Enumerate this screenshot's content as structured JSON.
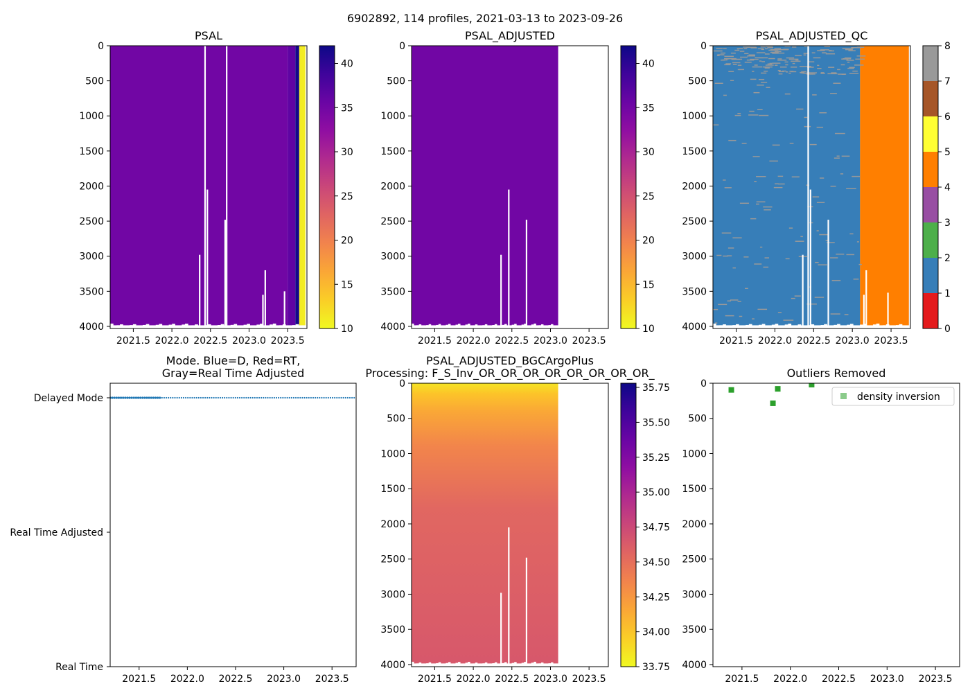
{
  "suptitle": "6902892, 114 profiles, 2021-03-13 to 2023-09-26",
  "chart_data": [
    {
      "id": "psal",
      "type": "heatmap",
      "title": "PSAL",
      "xlim": [
        2021.2,
        2023.75
      ],
      "ylim": [
        4030,
        0
      ],
      "xticks": [
        "2021.5",
        "2022.0",
        "2022.5",
        "2023.0",
        "2023.5"
      ],
      "yticks": [
        "0",
        "500",
        "1000",
        "1500",
        "2000",
        "2500",
        "3000",
        "3500",
        "4000"
      ],
      "colorbar": {
        "min": 10,
        "max": 42,
        "ticks": [
          "10",
          "15",
          "20",
          "25",
          "30",
          "35",
          "40"
        ],
        "colormap": "plasma_r"
      },
      "data_end": 2023.73,
      "value_bands": [
        {
          "x0": 2021.2,
          "x1": 2023.5,
          "value": 35
        },
        {
          "x0": 2023.5,
          "x1": 2023.6,
          "value": 36.5
        },
        {
          "x0": 2023.6,
          "x1": 2023.65,
          "value": 41.5
        },
        {
          "x0": 2023.65,
          "x1": 2023.73,
          "value": 11
        }
      ],
      "gaps": [
        {
          "x": 2022.35,
          "depth": 2980
        },
        {
          "x": 2022.42,
          "depth": 0
        },
        {
          "x": 2022.45,
          "depth": 2050
        },
        {
          "x": 2022.68,
          "depth": 2480
        },
        {
          "x": 2022.7,
          "depth": 0
        },
        {
          "x": 2023.17,
          "depth": 3550
        },
        {
          "x": 2023.2,
          "depth": 3200
        },
        {
          "x": 2023.45,
          "depth": 3500
        }
      ]
    },
    {
      "id": "psal_adjusted",
      "type": "heatmap",
      "title": "PSAL_ADJUSTED",
      "xlim": [
        2021.2,
        2023.75
      ],
      "ylim": [
        4030,
        0
      ],
      "xticks": [
        "2021.5",
        "2022.0",
        "2022.5",
        "2023.0",
        "2023.5"
      ],
      "yticks": [
        "0",
        "500",
        "1000",
        "1500",
        "2000",
        "2500",
        "3000",
        "3500",
        "4000"
      ],
      "colorbar": {
        "min": 10,
        "max": 42,
        "ticks": [
          "10",
          "15",
          "20",
          "25",
          "30",
          "35",
          "40"
        ],
        "colormap": "plasma_r"
      },
      "data_end": 2023.1,
      "value_bands": [
        {
          "x0": 2021.2,
          "x1": 2023.1,
          "value": 35
        }
      ],
      "gaps": [
        {
          "x": 2022.35,
          "depth": 2980
        },
        {
          "x": 2022.45,
          "depth": 2050
        },
        {
          "x": 2022.68,
          "depth": 2480
        }
      ]
    },
    {
      "id": "psal_adjusted_qc",
      "type": "heatmap",
      "title": "PSAL_ADJUSTED_QC",
      "xlim": [
        2021.2,
        2023.75
      ],
      "ylim": [
        4030,
        0
      ],
      "xticks": [
        "2021.5",
        "2022.0",
        "2022.5",
        "2023.0",
        "2023.5"
      ],
      "yticks": [
        "0",
        "500",
        "1000",
        "1500",
        "2000",
        "2500",
        "3000",
        "3500",
        "4000"
      ],
      "colorbar": {
        "min": 0,
        "max": 8,
        "ticks": [
          "0",
          "1",
          "2",
          "3",
          "4",
          "5",
          "6",
          "7",
          "8"
        ],
        "categories": [
          "#e41a1c",
          "#377eb8",
          "#4daf4a",
          "#984ea3",
          "#ff7f00",
          "#ffff33",
          "#a65628",
          "#f781bf",
          "#999999"
        ]
      },
      "data_end": 2023.73,
      "qc_bands": [
        {
          "x0": 2021.2,
          "x1": 2023.1,
          "flag": 1
        },
        {
          "x0": 2023.1,
          "x1": 2023.73,
          "flag": 4
        }
      ],
      "gaps": [
        {
          "x": 2022.35,
          "depth": 2980
        },
        {
          "x": 2022.42,
          "depth": 0
        },
        {
          "x": 2022.45,
          "depth": 2050
        },
        {
          "x": 2022.68,
          "depth": 2480
        },
        {
          "x": 2023.14,
          "depth": 3550
        },
        {
          "x": 2023.17,
          "depth": 3200
        },
        {
          "x": 2023.45,
          "depth": 3520
        }
      ]
    },
    {
      "id": "mode",
      "type": "scatter",
      "title_lines": [
        "Mode. Blue=D, Red=RT,",
        "Gray=Real Time Adjusted"
      ],
      "xlim": [
        2021.2,
        2023.75
      ],
      "xticks": [
        "2021.5",
        "2022.0",
        "2022.5",
        "2023.0",
        "2023.5"
      ],
      "ycategories": [
        "Real Time",
        "Real Time Adjusted",
        "Delayed Mode"
      ],
      "series": [
        {
          "name": "Delayed Mode",
          "color": "#1f77b4",
          "x_start": 2021.2,
          "x_end": 2023.73,
          "count": 114,
          "value": "Delayed Mode"
        }
      ]
    },
    {
      "id": "psal_bgc",
      "type": "heatmap",
      "title_lines": [
        "PSAL_ADJUSTED_BGCArgoPlus",
        "Processing: F_S_Inv_OR_OR_OR_OR_OR_OR_OR_OR_"
      ],
      "xlim": [
        2021.2,
        2023.75
      ],
      "ylim": [
        4030,
        0
      ],
      "xticks": [
        "2021.5",
        "2022.0",
        "2022.5",
        "2023.0",
        "2023.5"
      ],
      "yticks": [
        "0",
        "500",
        "1000",
        "1500",
        "2000",
        "2500",
        "3000",
        "3500",
        "4000"
      ],
      "colorbar": {
        "min": 33.75,
        "max": 35.78,
        "ticks": [
          "33.75",
          "34.00",
          "34.25",
          "34.50",
          "34.75",
          "35.00",
          "35.25",
          "35.50",
          "35.75"
        ],
        "colormap": "plasma_r"
      },
      "data_end": 2023.1,
      "depth_profile": [
        {
          "depth": 0,
          "value": 33.85
        },
        {
          "depth": 150,
          "value": 34.0
        },
        {
          "depth": 400,
          "value": 34.15
        },
        {
          "depth": 900,
          "value": 34.35
        },
        {
          "depth": 1800,
          "value": 34.55
        },
        {
          "depth": 4000,
          "value": 34.65
        }
      ],
      "gaps": [
        {
          "x": 2022.35,
          "depth": 2980
        },
        {
          "x": 2022.45,
          "depth": 2050
        },
        {
          "x": 2022.68,
          "depth": 2480
        }
      ]
    },
    {
      "id": "outliers",
      "type": "scatter",
      "title": "Outliers Removed",
      "xlim": [
        2021.2,
        2023.75
      ],
      "ylim": [
        4030,
        0
      ],
      "xticks": [
        "2021.5",
        "2022.0",
        "2022.5",
        "2023.0",
        "2023.5"
      ],
      "yticks": [
        "0",
        "500",
        "1000",
        "1500",
        "2000",
        "2500",
        "3000",
        "3500",
        "4000"
      ],
      "legend": "density inversion",
      "legend_loc": "upper right",
      "series": [
        {
          "name": "density inversion",
          "color": "#2ca02c",
          "points": [
            {
              "x": 2021.39,
              "y": 95
            },
            {
              "x": 2021.82,
              "y": 285
            },
            {
              "x": 2021.87,
              "y": 80
            },
            {
              "x": 2022.22,
              "y": 20
            }
          ]
        }
      ]
    }
  ]
}
